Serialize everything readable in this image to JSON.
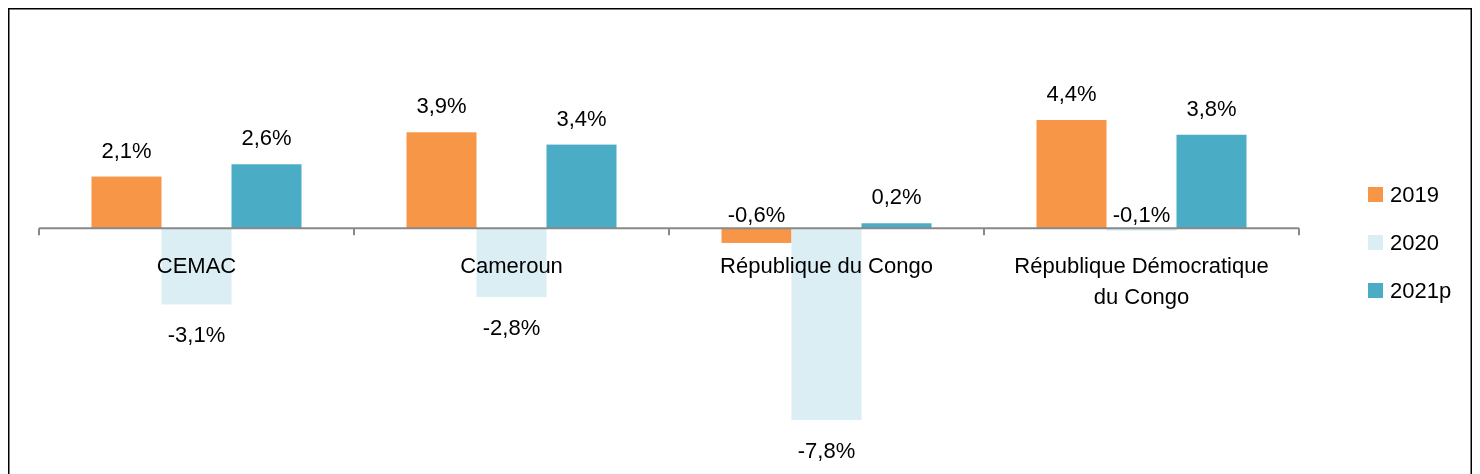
{
  "chart_data": {
    "type": "bar",
    "categories": [
      "CEMAC",
      "Cameroun",
      "République du Congo",
      "République Démocratique du Congo"
    ],
    "series": [
      {
        "name": "2019",
        "color": "#f79646",
        "values": [
          2.1,
          3.9,
          -0.6,
          4.4
        ],
        "value_labels": [
          "2,1%",
          "3,9%",
          "-0,6%",
          "4,4%"
        ]
      },
      {
        "name": "2020",
        "color": "#daeef3",
        "values": [
          -3.1,
          -2.8,
          -7.8,
          -0.1
        ],
        "value_labels": [
          "-3,1%",
          "-2,8%",
          "-7,8%",
          "-0,1%"
        ]
      },
      {
        "name": "2021p",
        "color": "#4bacc6",
        "values": [
          2.6,
          3.4,
          0.2,
          3.8
        ],
        "value_labels": [
          "2,6%",
          "3,4%",
          "0,2%",
          "3,8%"
        ]
      }
    ],
    "legend": "right"
  }
}
